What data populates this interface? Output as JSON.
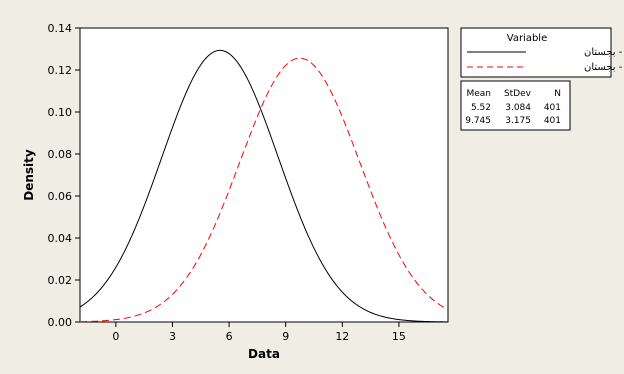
{
  "chart_data": {
    "type": "line",
    "title": "",
    "xlabel": "Data",
    "ylabel": "Density",
    "xlim": [
      -1.9,
      17.6
    ],
    "ylim": [
      0,
      0.14
    ],
    "x_ticks": [
      0,
      3,
      6,
      9,
      12,
      15
    ],
    "y_ticks": [
      0.0,
      0.02,
      0.04,
      0.06,
      0.08,
      0.1,
      0.12,
      0.14
    ],
    "x_tick_labels": [
      "0",
      "3",
      "6",
      "9",
      "12",
      "15"
    ],
    "y_tick_labels": [
      "0.00",
      "0.02",
      "0.04",
      "0.06",
      "0.08",
      "0.10",
      "0.12",
      "0.14"
    ],
    "grid": false,
    "legend_position": "top-right outside",
    "legend_title": "Variable",
    "series": [
      {
        "name": "اولیه - بجستان",
        "mean": 5.52,
        "stdev": 3.084,
        "n": 401,
        "color": "#000000",
        "dash": "solid"
      },
      {
        "name": "ثانویه - بجستان",
        "mean": 9.745,
        "stdev": 3.175,
        "n": 401,
        "color": "#ff0000",
        "dash": "dashed"
      }
    ],
    "stats_table": {
      "headers": [
        "Mean",
        "StDev",
        "N"
      ],
      "rows": [
        [
          "5.52",
          "3.084",
          "401"
        ],
        [
          "9.745",
          "3.175",
          "401"
        ]
      ]
    }
  }
}
